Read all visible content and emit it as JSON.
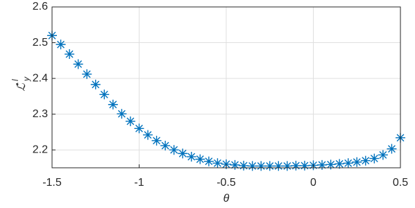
{
  "chart_data": {
    "type": "scatter",
    "xlabel": "θ",
    "ylabel": "ℒ̂",
    "ylabel_sub": "y",
    "ylabel_sup": "l",
    "marker": "asterisk",
    "grid": true,
    "xlim": [
      -1.5,
      0.5
    ],
    "xticks": [
      -1.5,
      -1,
      -0.5,
      0,
      0.5
    ],
    "ylim": [
      2.15,
      2.6
    ],
    "yticks": [
      2.2,
      2.3,
      2.4,
      2.5,
      2.6
    ],
    "series": [
      {
        "color": "#0072bd",
        "x": [
          -1.5,
          -1.45,
          -1.4,
          -1.35,
          -1.3,
          -1.25,
          -1.2,
          -1.15,
          -1.1,
          -1.05,
          -1.0,
          -0.95,
          -0.9,
          -0.85,
          -0.8,
          -0.75,
          -0.7,
          -0.65,
          -0.6,
          -0.55,
          -0.5,
          -0.45,
          -0.4,
          -0.35,
          -0.3,
          -0.25,
          -0.2,
          -0.15,
          -0.1,
          -0.05,
          0,
          0.05,
          0.1,
          0.15,
          0.2,
          0.25,
          0.3,
          0.35,
          0.4,
          0.45,
          0.5
        ],
        "values": [
          2.52,
          2.495,
          2.468,
          2.44,
          2.412,
          2.383,
          2.355,
          2.327,
          2.301,
          2.28,
          2.26,
          2.242,
          2.226,
          2.212,
          2.2,
          2.19,
          2.181,
          2.174,
          2.168,
          2.163,
          2.16,
          2.158,
          2.156,
          2.155,
          2.155,
          2.155,
          2.155,
          2.155,
          2.156,
          2.156,
          2.157,
          2.158,
          2.159,
          2.161,
          2.163,
          2.166,
          2.17,
          2.176,
          2.186,
          2.203,
          2.234
        ]
      }
    ]
  }
}
